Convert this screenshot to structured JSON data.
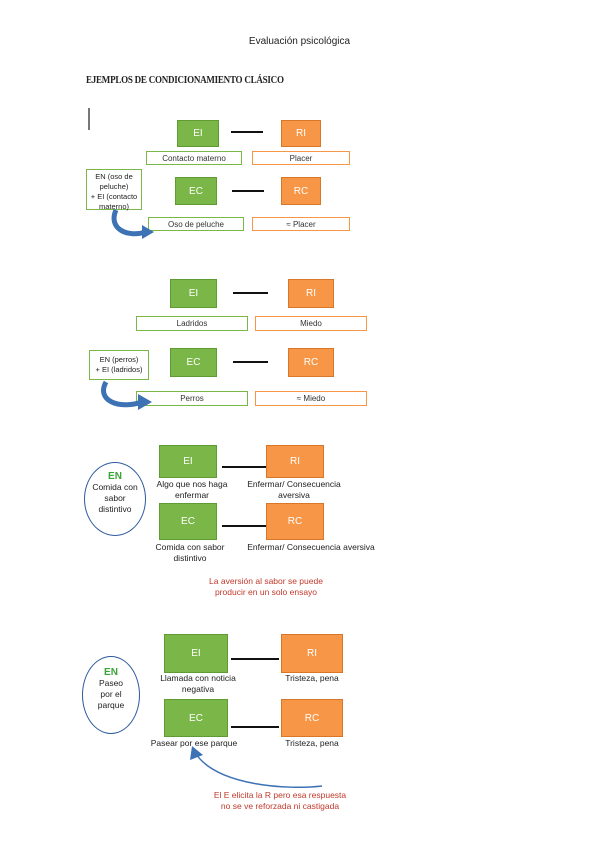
{
  "header": {
    "title": "Evaluación psicológica"
  },
  "section": {
    "title": "EJEMPLOS DE CONDICIONAMIENTO CLÁSICO"
  },
  "d1": {
    "ei": "EI",
    "ri": "RI",
    "ei_lbl": "Contacto materno",
    "ri_lbl": "Placer",
    "ec": "EC",
    "rc": "RC",
    "en_box": [
      "EN (oso de",
      "peluche)",
      "+ EI (contacto",
      "materno)"
    ],
    "ec_lbl": "Oso de peluche",
    "rc_lbl": "≈ Placer"
  },
  "d2": {
    "ei": "EI",
    "ri": "RI",
    "ei_lbl": "Ladridos",
    "ri_lbl": "Miedo",
    "ec": "EC",
    "rc": "RC",
    "en_box": [
      "EN (perros)",
      "+ EI (ladridos)"
    ],
    "ec_lbl": "Perros",
    "rc_lbl": "≈ Miedo"
  },
  "d3": {
    "en_head": "EN",
    "en_lines": [
      "Comida con",
      "sabor",
      "distintivo"
    ],
    "ei": "EI",
    "ri": "RI",
    "ei_lbl": [
      "Algo que nos haga",
      "enfermar"
    ],
    "ri_lbl": [
      "Enfermar/ Consecuencia",
      "aversiva"
    ],
    "ec": "EC",
    "rc": "RC",
    "ec_lbl": [
      "Comida con sabor",
      "distintivo"
    ],
    "rc_lbl": "Enfermar/ Consecuencia aversiva",
    "note": [
      "La aversión al sabor se puede",
      "producir en un solo ensayo"
    ]
  },
  "d4": {
    "en_head": "EN",
    "en_lines": [
      "Paseo",
      "por el",
      "parque"
    ],
    "ei": "EI",
    "ri": "RI",
    "ei_lbl": [
      "Llamada con noticia",
      "negativa"
    ],
    "ri_lbl": "Tristeza, pena",
    "ec": "EC",
    "rc": "RC",
    "ec_lbl": "Pasear por ese parque",
    "rc_lbl": "Tristeza, pena",
    "note": [
      "El E elicita la R pero esa respuesta",
      "no se ve reforzada ni castigada"
    ]
  }
}
